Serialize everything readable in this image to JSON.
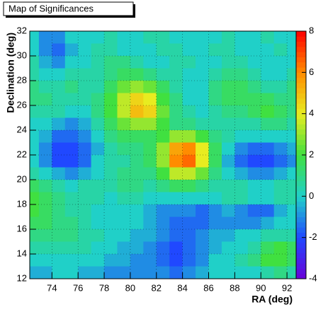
{
  "chart_data": {
    "type": "heatmap",
    "title": "Map of Significances",
    "x_label": "RA (deg)",
    "y_label": "Declination (deg)",
    "xlim": [
      72.3,
      92.7
    ],
    "ylim": [
      12,
      32
    ],
    "zlim": [
      -4,
      8
    ],
    "xticks": [
      74,
      76,
      78,
      80,
      82,
      84,
      86,
      88,
      90,
      92
    ],
    "yticks": [
      12,
      14,
      16,
      18,
      20,
      22,
      24,
      26,
      28,
      30,
      32
    ],
    "zticks": [
      -4,
      -2,
      0,
      2,
      4,
      6,
      8
    ],
    "grid": true,
    "colorscale": [
      "#6a00d8",
      "#2048ff",
      "#20d0c8",
      "#40e040",
      "#e8ec20",
      "#ff8c00",
      "#ff0000"
    ],
    "x": [
      72.5,
      73.5,
      74.5,
      75.5,
      76.5,
      77.5,
      78.5,
      79.5,
      80.5,
      81.5,
      82.5,
      83.5,
      84.5,
      85.5,
      86.5,
      87.5,
      88.5,
      89.5,
      90.5,
      91.5,
      92.5
    ],
    "y": [
      31.5,
      30.5,
      29.5,
      28.5,
      27.5,
      26.5,
      25.5,
      24.5,
      23.5,
      22.5,
      21.5,
      20.5,
      19.5,
      18.5,
      17.5,
      16.5,
      15.5,
      14.5,
      13.5,
      12.5
    ],
    "z": [
      [
        0,
        -1,
        -1,
        0,
        0,
        0,
        0.5,
        0,
        0,
        0.5,
        0.5,
        0,
        0,
        0,
        0,
        0.5,
        0,
        0,
        0.5,
        0,
        0
      ],
      [
        0,
        -1,
        -1.5,
        -0.5,
        0,
        0.5,
        0.5,
        0,
        0,
        0,
        0.5,
        0.5,
        0,
        0,
        0.5,
        0.5,
        0,
        0,
        0,
        0.5,
        0
      ],
      [
        0.5,
        -0.5,
        -1,
        0,
        0,
        0.5,
        1,
        1,
        0.5,
        0,
        0,
        0.5,
        0.5,
        0,
        0,
        0.5,
        0.5,
        0,
        0,
        0,
        0
      ],
      [
        0.5,
        0,
        0,
        0.5,
        0.5,
        0.5,
        1,
        1.5,
        1.5,
        1,
        0.5,
        0.5,
        0,
        0,
        0.5,
        1,
        1,
        0.5,
        0,
        0,
        0.5
      ],
      [
        1,
        0.5,
        0.5,
        1,
        0.5,
        0.5,
        1.5,
        2.5,
        3,
        2.5,
        1.5,
        0.5,
        0,
        0,
        1,
        1.5,
        1.5,
        1,
        0.5,
        0.5,
        1
      ],
      [
        1,
        1,
        0.5,
        0.5,
        0.5,
        1,
        2,
        3.5,
        4.5,
        4,
        2,
        1,
        0,
        0,
        1,
        1.5,
        1.5,
        1.5,
        1.5,
        1,
        1
      ],
      [
        0.5,
        0.5,
        0.5,
        0,
        0,
        1,
        2,
        3.5,
        5,
        4.5,
        2.5,
        1,
        0.5,
        0,
        0.5,
        1,
        1,
        1.5,
        2,
        1.5,
        1
      ],
      [
        0,
        0,
        -0.5,
        -1,
        -0.5,
        0.5,
        1.5,
        2.5,
        3,
        3,
        2,
        1,
        1,
        0.5,
        0.5,
        0.5,
        0.5,
        0.5,
        1,
        1,
        0.5
      ],
      [
        0,
        -0.5,
        -1.5,
        -1.5,
        -1,
        0,
        1,
        1.5,
        1.5,
        1.5,
        2,
        3,
        3,
        2,
        1,
        0.5,
        0,
        0,
        0,
        0,
        0
      ],
      [
        0,
        -1,
        -2,
        -2,
        -1.5,
        -0.5,
        0.5,
        1,
        1,
        1.5,
        3,
        5.5,
        6,
        4,
        1.5,
        0,
        -1,
        -1.5,
        -1.5,
        -1,
        -0.5
      ],
      [
        0,
        -1,
        -2,
        -2,
        -1.5,
        0,
        0.5,
        0.5,
        1,
        1.5,
        3,
        6,
        6.5,
        4,
        1.5,
        -0.5,
        -1.5,
        -2,
        -2,
        -1.5,
        -1
      ],
      [
        0.5,
        0,
        -0.5,
        -1,
        -0.5,
        0,
        0.5,
        1,
        1,
        1,
        2,
        3.5,
        3.5,
        2.5,
        1,
        0,
        -0.5,
        -1,
        -1,
        -0.5,
        0
      ],
      [
        1.5,
        1,
        0.5,
        0,
        0.5,
        0.5,
        0.5,
        1,
        1,
        0.5,
        1,
        1.5,
        1.5,
        1,
        0.5,
        0.5,
        0.5,
        0,
        0,
        0.5,
        0.5
      ],
      [
        2,
        1.5,
        1,
        0.5,
        0.5,
        0.5,
        0,
        0.5,
        0.5,
        0,
        0,
        0,
        0,
        0,
        0,
        0.5,
        0.5,
        0,
        0,
        0.5,
        0.5
      ],
      [
        2,
        1.5,
        1,
        0.5,
        0.5,
        0,
        0,
        0,
        0,
        -0.5,
        -1,
        -1,
        -1,
        -1.5,
        -1,
        -0.5,
        -1,
        -1.5,
        -1.5,
        -0.5,
        0
      ],
      [
        1.5,
        1.5,
        1,
        1,
        0.5,
        0,
        0,
        0,
        0,
        -0.5,
        -1,
        -1.5,
        -1.5,
        -1.5,
        -1,
        -1,
        -1,
        -1,
        -0.5,
        0,
        0
      ],
      [
        1,
        1,
        1,
        1,
        0.5,
        0.5,
        0,
        0,
        -0.5,
        -0.5,
        -1,
        -1.5,
        -1.5,
        -1,
        -0.5,
        -0.5,
        0,
        0,
        0.5,
        0.5,
        0.5
      ],
      [
        0.5,
        0.5,
        0.5,
        0.5,
        0.5,
        0,
        0,
        -0.5,
        -0.5,
        -1,
        -1.5,
        -2,
        -1.5,
        -1,
        -0.5,
        0,
        0,
        0.5,
        1.5,
        2,
        1.5
      ],
      [
        0,
        0,
        0,
        0,
        0,
        0,
        -0.5,
        -0.5,
        -1,
        -1,
        -1.5,
        -2,
        -1.5,
        -1,
        0,
        0,
        0.5,
        1,
        2,
        2,
        1.5
      ],
      [
        -0.5,
        -0.5,
        0,
        0,
        -0.5,
        -0.5,
        -1,
        -1,
        -1,
        -1,
        -1,
        -1.5,
        -1,
        -0.5,
        0,
        0,
        0,
        0,
        0.5,
        1,
        0.5
      ]
    ]
  }
}
